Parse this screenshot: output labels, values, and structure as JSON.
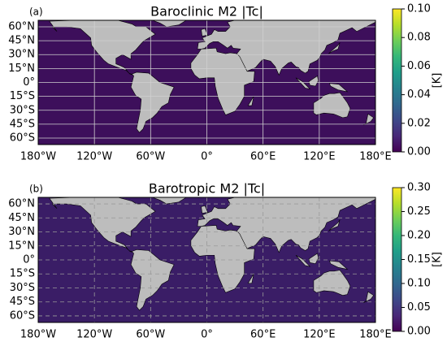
{
  "chart_data": [
    {
      "type": "map",
      "panel_label": "(a)",
      "title": "Baroclinic M2 |Tc|",
      "xlim": [
        -180,
        180
      ],
      "ylim": [
        -67,
        67
      ],
      "xticks": [
        {
          "value": -180,
          "label": "180°W"
        },
        {
          "value": -120,
          "label": "120°W"
        },
        {
          "value": -60,
          "label": "60°W"
        },
        {
          "value": 0,
          "label": "0°"
        },
        {
          "value": 60,
          "label": "60°E"
        },
        {
          "value": 120,
          "label": "120°E"
        },
        {
          "value": 180,
          "label": "180°E"
        }
      ],
      "yticks": [
        {
          "value": 60,
          "label": "60°N"
        },
        {
          "value": 45,
          "label": "45°N"
        },
        {
          "value": 30,
          "label": "30°N"
        },
        {
          "value": 15,
          "label": "15°N"
        },
        {
          "value": 0,
          "label": "0°"
        },
        {
          "value": -15,
          "label": "15°S"
        },
        {
          "value": -30,
          "label": "30°S"
        },
        {
          "value": -45,
          "label": "45°S"
        },
        {
          "value": -60,
          "label": "60°S"
        }
      ],
      "grid": true,
      "grid_linestyle": "solid",
      "colormap": "viridis",
      "colorbar": {
        "label": "[K]",
        "lim": [
          0,
          0.1
        ],
        "ticks": [
          {
            "value": 0,
            "label": "0.00"
          },
          {
            "value": 0.02,
            "label": "0.02"
          },
          {
            "value": 0.04,
            "label": "0.04"
          },
          {
            "value": 0.06,
            "label": "0.06"
          },
          {
            "value": 0.08,
            "label": "0.08"
          },
          {
            "value": 0.1,
            "label": "0.10"
          }
        ]
      }
    },
    {
      "type": "map",
      "panel_label": "(b)",
      "title": "Barotropic M2 |Tc|",
      "xlim": [
        -180,
        180
      ],
      "ylim": [
        -67,
        67
      ],
      "xticks": [
        {
          "value": -180,
          "label": "180°W"
        },
        {
          "value": -120,
          "label": "120°W"
        },
        {
          "value": -60,
          "label": "60°W"
        },
        {
          "value": 0,
          "label": "0°"
        },
        {
          "value": 60,
          "label": "60°E"
        },
        {
          "value": 120,
          "label": "120°E"
        },
        {
          "value": 180,
          "label": "180°E"
        }
      ],
      "yticks": [
        {
          "value": 60,
          "label": "60°N"
        },
        {
          "value": 45,
          "label": "45°N"
        },
        {
          "value": 30,
          "label": "30°N"
        },
        {
          "value": 15,
          "label": "15°N"
        },
        {
          "value": 0,
          "label": "0°"
        },
        {
          "value": -15,
          "label": "15°S"
        },
        {
          "value": -30,
          "label": "30°S"
        },
        {
          "value": -45,
          "label": "45°S"
        },
        {
          "value": -60,
          "label": "60°S"
        }
      ],
      "grid": true,
      "grid_linestyle": "dashed",
      "colormap": "viridis",
      "colorbar": {
        "label": "[K]",
        "lim": [
          0,
          0.3
        ],
        "ticks": [
          {
            "value": 0,
            "label": "0.00"
          },
          {
            "value": 0.05,
            "label": "0.05"
          },
          {
            "value": 0.1,
            "label": "0.10"
          },
          {
            "value": 0.15,
            "label": "0.15"
          },
          {
            "value": 0.2,
            "label": "0.20"
          },
          {
            "value": 0.25,
            "label": "0.25"
          },
          {
            "value": 0.3,
            "label": "0.30"
          }
        ]
      }
    }
  ]
}
